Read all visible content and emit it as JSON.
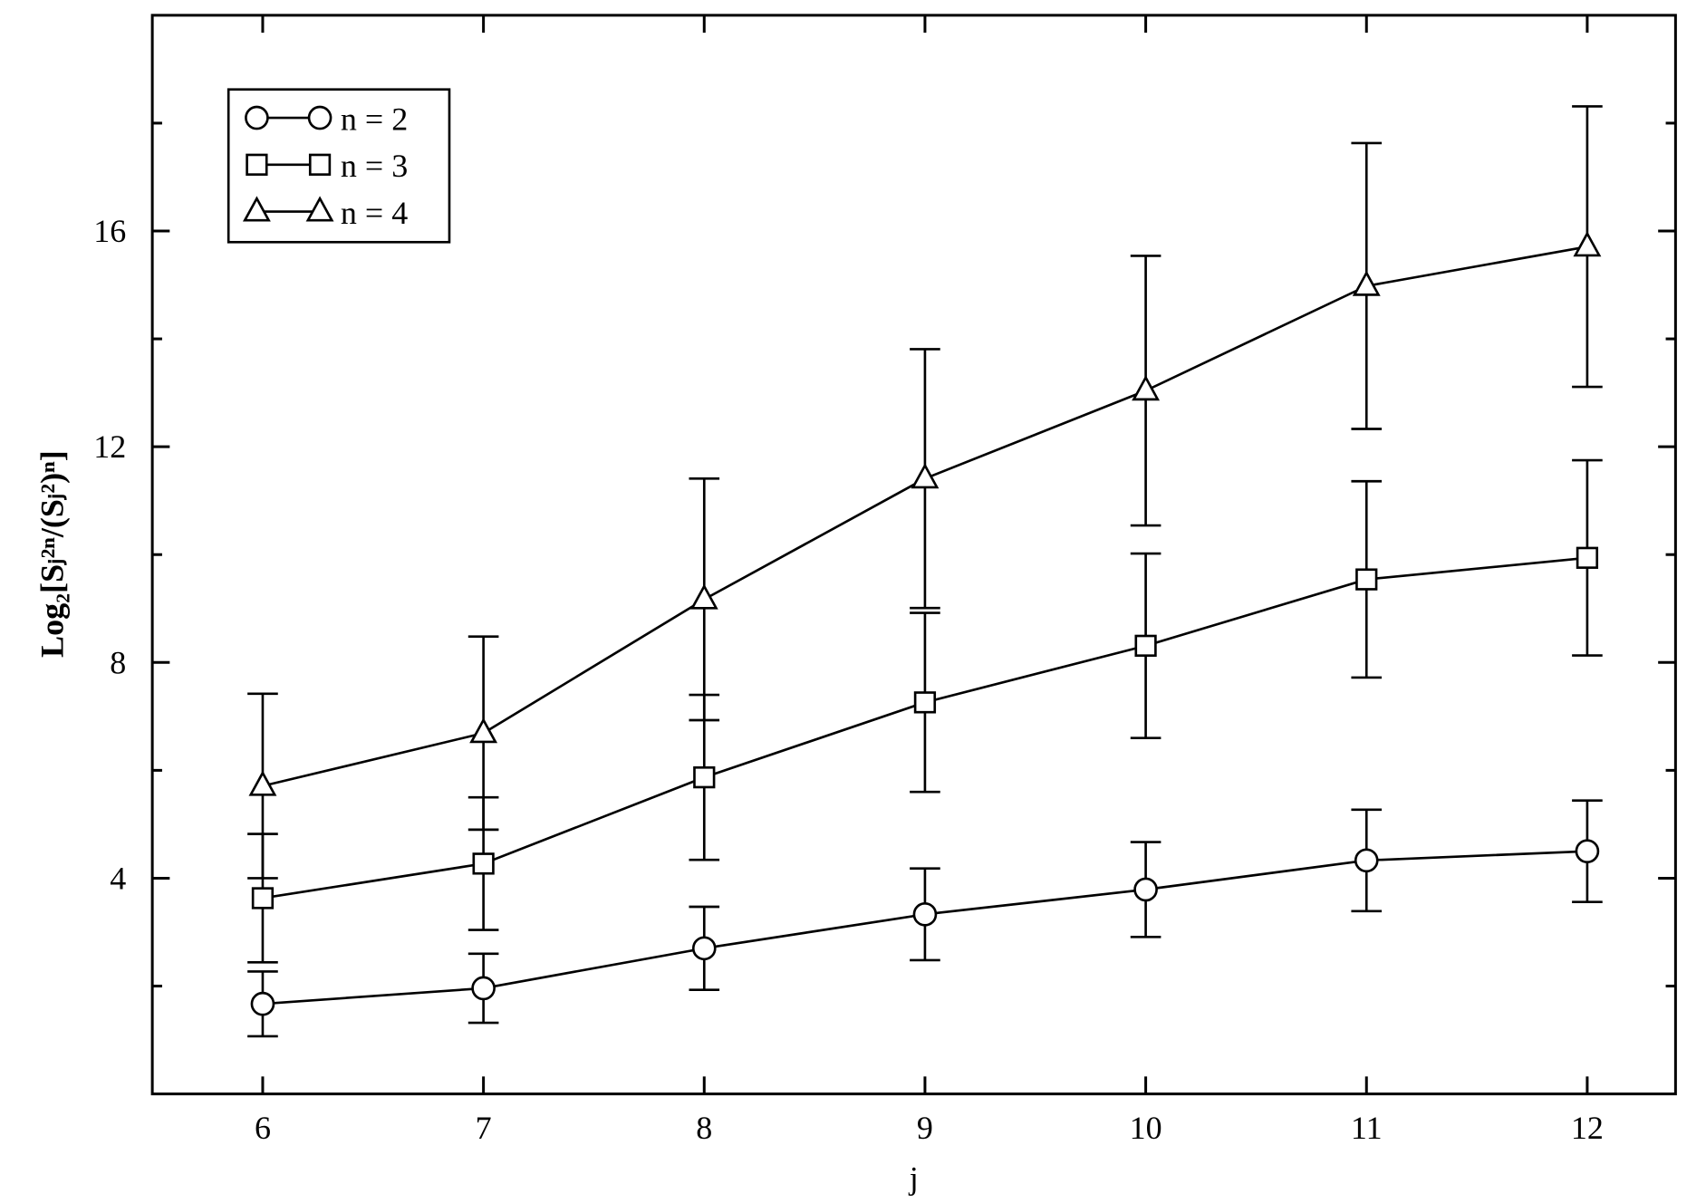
{
  "chart_data": {
    "type": "line",
    "xlabel": "j",
    "ylabel": "Log₂[Sⱼ²ⁿ/(Sⱼ²)ⁿ]",
    "x": [
      6,
      7,
      8,
      9,
      10,
      11,
      12
    ],
    "xlim": [
      5.5,
      12.4
    ],
    "xticks": [
      6,
      7,
      8,
      9,
      10,
      11,
      12
    ],
    "ylim": [
      0,
      20
    ],
    "yticks": [
      4,
      8,
      12,
      16
    ],
    "yminor": [
      2,
      6,
      10,
      14,
      18
    ],
    "legend": "upper left",
    "series": [
      {
        "name": "n = 2",
        "marker": "circle",
        "color": "#000000",
        "values": [
          1.67,
          1.96,
          2.7,
          3.33,
          3.79,
          4.33,
          4.5
        ],
        "errors": [
          0.6,
          0.64,
          0.77,
          0.85,
          0.88,
          0.94,
          0.94
        ]
      },
      {
        "name": "n = 3",
        "marker": "square",
        "color": "#000000",
        "values": [
          3.63,
          4.27,
          5.87,
          7.26,
          8.31,
          9.54,
          9.94
        ],
        "errors": [
          1.19,
          1.23,
          1.53,
          1.66,
          1.71,
          1.82,
          1.81
        ]
      },
      {
        "name": "n = 4",
        "marker": "triangle",
        "color": "#000000",
        "values": [
          5.71,
          6.69,
          9.17,
          11.41,
          13.04,
          14.98,
          15.71
        ],
        "errors": [
          1.71,
          1.79,
          2.24,
          2.4,
          2.5,
          2.65,
          2.6
        ]
      }
    ]
  }
}
